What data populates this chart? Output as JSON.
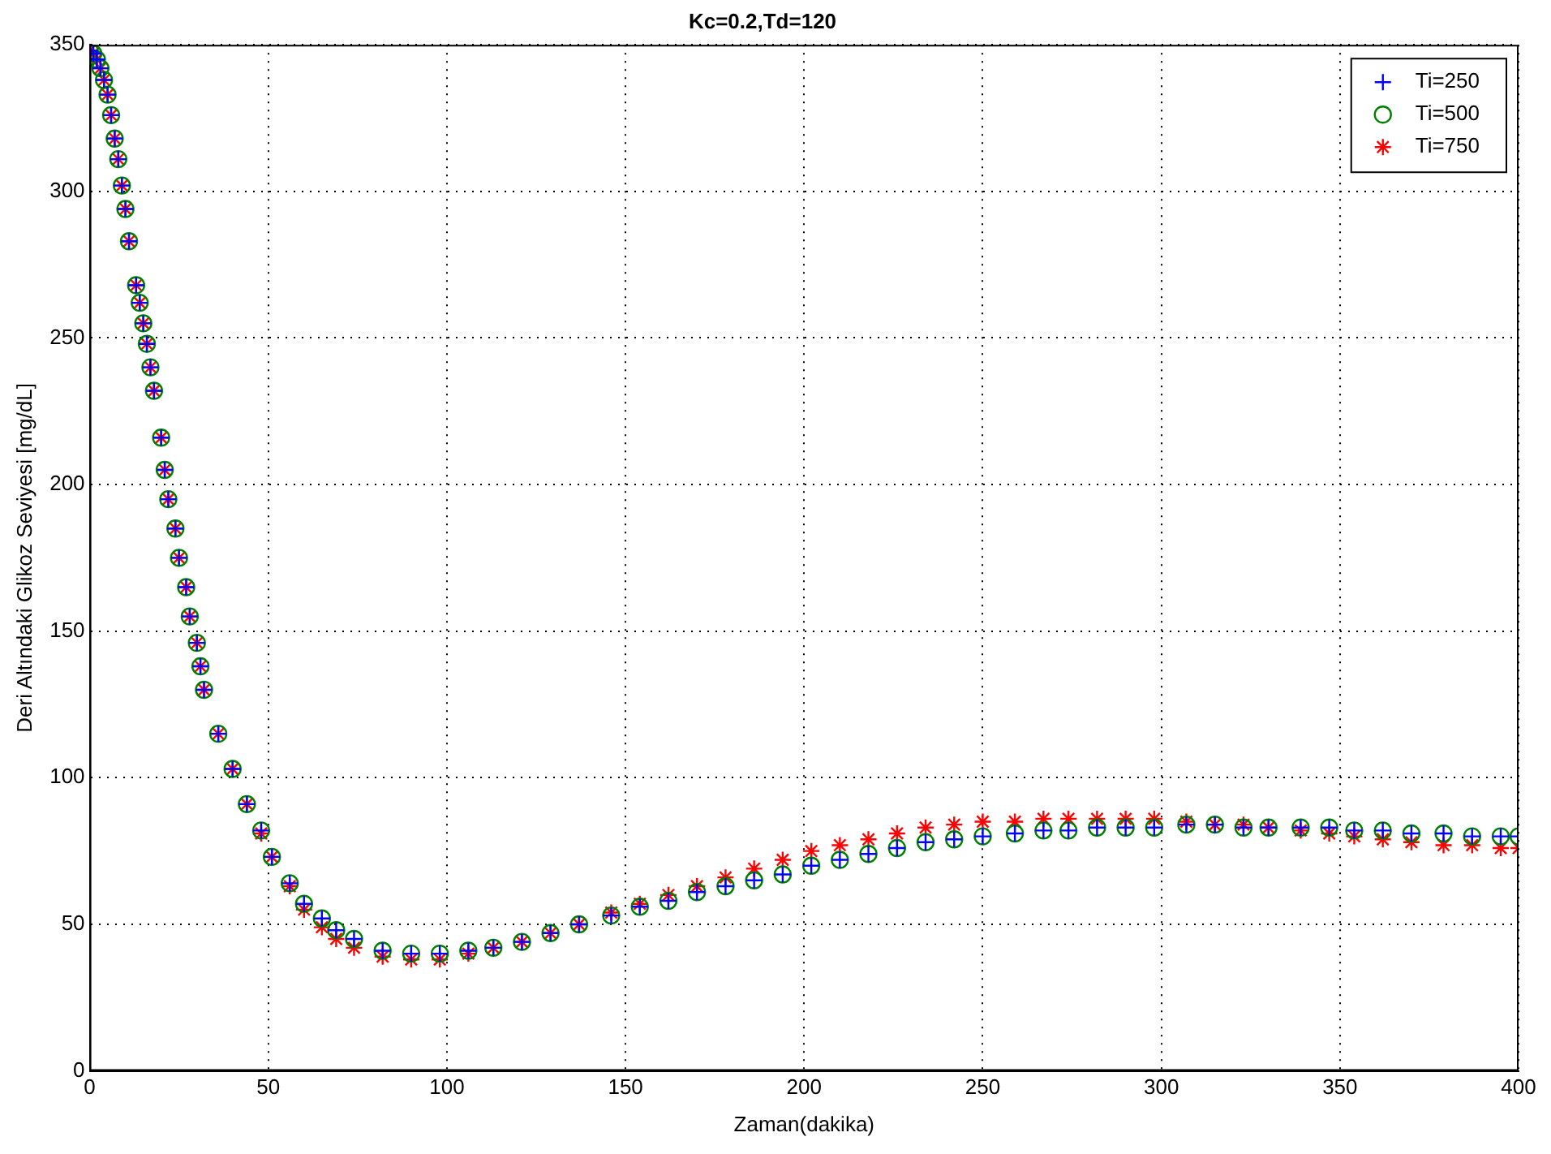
{
  "chart_data": {
    "type": "scatter",
    "title": "Kc=0.2,Td=120",
    "xlabel": "Zaman(dakika)",
    "ylabel": "Deri Altındaki Glikoz Seviyesi [mg/dL]",
    "x": [
      0,
      1,
      2,
      3,
      4,
      5,
      6,
      7,
      8,
      9,
      10,
      11,
      13,
      14,
      15,
      16,
      17,
      18,
      20,
      21,
      22,
      24,
      25,
      27,
      28,
      30,
      31,
      32,
      36,
      40,
      44,
      48,
      51,
      56,
      60,
      65,
      69,
      74,
      82,
      90,
      98,
      106,
      113,
      121,
      129,
      137,
      146,
      154,
      162,
      170,
      178,
      186,
      194,
      202,
      210,
      218,
      226,
      234,
      242,
      250,
      259,
      267,
      274,
      282,
      290,
      298,
      307,
      315,
      323,
      330,
      339,
      347,
      354,
      362,
      370,
      379,
      387,
      395,
      400
    ],
    "series": [
      {
        "name": "Ti=250",
        "color": "#0000ff",
        "marker": "cross",
        "values": [
          348,
          347,
          345,
          342,
          338,
          333,
          326,
          318,
          311,
          302,
          294,
          283,
          268,
          262,
          255,
          248,
          240,
          232,
          216,
          205,
          195,
          185,
          175,
          165,
          155,
          146,
          138,
          130,
          115,
          103,
          91,
          82,
          73,
          64,
          57,
          52,
          48,
          45,
          41,
          40,
          40,
          41,
          42,
          44,
          47,
          50,
          53,
          56,
          58,
          61,
          63,
          65,
          67,
          70,
          72,
          74,
          76,
          78,
          79,
          80,
          81,
          82,
          82,
          83,
          83,
          83,
          84,
          84,
          83,
          83,
          83,
          83,
          82,
          82,
          81,
          81,
          80,
          80,
          80
        ]
      },
      {
        "name": "Ti=500",
        "color": "#008000",
        "marker": "circle",
        "values": [
          348,
          347,
          345,
          342,
          338,
          333,
          326,
          318,
          311,
          302,
          294,
          283,
          268,
          262,
          255,
          248,
          240,
          232,
          216,
          205,
          195,
          185,
          175,
          165,
          155,
          146,
          138,
          130,
          115,
          103,
          91,
          82,
          73,
          64,
          57,
          52,
          48,
          45,
          41,
          40,
          40,
          41,
          42,
          44,
          47,
          50,
          53,
          56,
          58,
          61,
          63,
          65,
          67,
          70,
          72,
          74,
          76,
          78,
          79,
          80,
          81,
          82,
          82,
          83,
          83,
          83,
          84,
          84,
          83,
          83,
          83,
          83,
          82,
          82,
          81,
          81,
          80,
          80,
          80
        ]
      },
      {
        "name": "Ti=750",
        "color": "#ff0000",
        "values": [
          348,
          347,
          345,
          342,
          338,
          333,
          326,
          318,
          311,
          302,
          294,
          283,
          268,
          262,
          255,
          248,
          240,
          232,
          216,
          205,
          195,
          185,
          175,
          165,
          155,
          146,
          138,
          130,
          115,
          103,
          91,
          81,
          73,
          63,
          55,
          49,
          45,
          42,
          39,
          38,
          38,
          40,
          42,
          44,
          47,
          50,
          54,
          57,
          60,
          63,
          66,
          69,
          72,
          75,
          77,
          79,
          81,
          83,
          84,
          85,
          85,
          86,
          86,
          86,
          86,
          86,
          85,
          84,
          84,
          83,
          82,
          81,
          80,
          79,
          78,
          77,
          77,
          76,
          76
        ]
      }
    ],
    "xlim": [
      0,
      400
    ],
    "xticks": [
      0,
      50,
      100,
      150,
      200,
      250,
      300,
      350,
      400
    ],
    "ylim": [
      0,
      350
    ],
    "yticks": [
      0,
      50,
      100,
      150,
      200,
      250,
      300,
      350
    ],
    "grid": true,
    "legend": "top right"
  }
}
